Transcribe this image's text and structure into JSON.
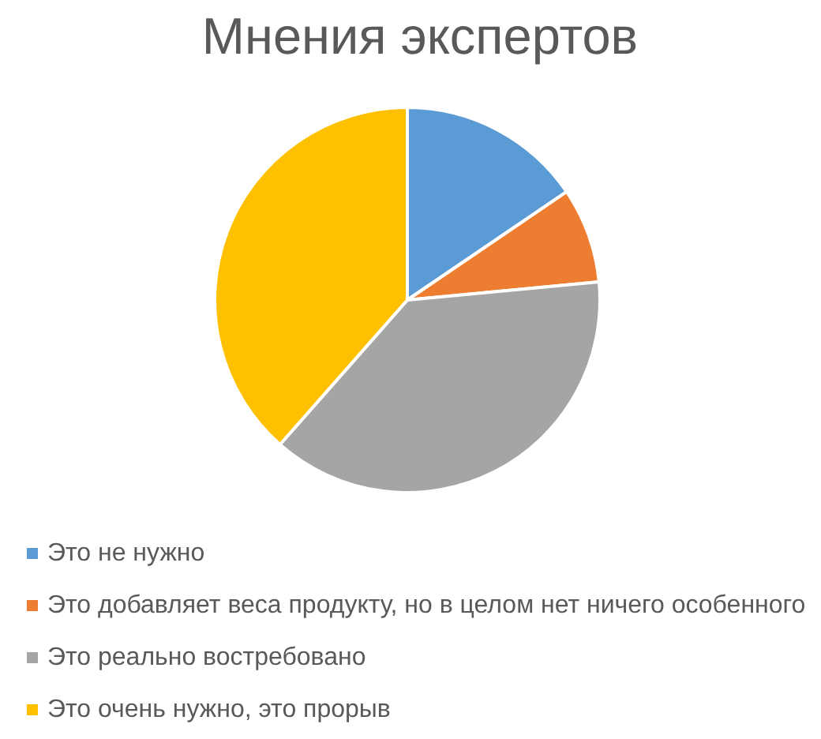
{
  "chart_data": {
    "type": "pie",
    "title": "Мнения экспертов",
    "categories": [
      "Это не нужно",
      "Это добавляет веса продукту, но в целом нет ничего особенного",
      "Это реально востребовано",
      "Это очень нужно, это прорыв"
    ],
    "values": [
      15.5,
      8,
      38,
      38.5
    ],
    "colors": [
      "#5b9bd5",
      "#ed7d31",
      "#a5a5a5",
      "#ffc000"
    ],
    "legend": "bottom"
  }
}
